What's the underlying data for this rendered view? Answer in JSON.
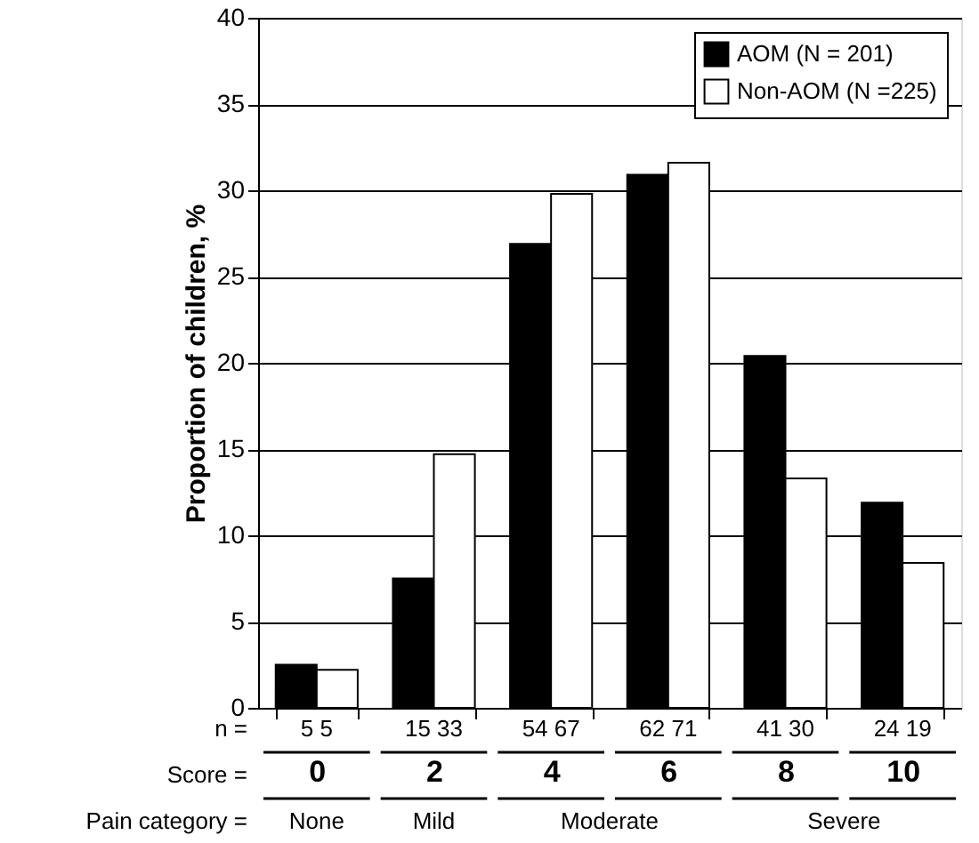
{
  "chart_data": {
    "type": "bar",
    "ylabel": "Proportion of children, %",
    "categories": [
      "0",
      "2",
      "4",
      "6",
      "8",
      "10"
    ],
    "series": [
      {
        "name": "AOM (N = 201)",
        "color": "#000000",
        "values": [
          2.5,
          7.5,
          26.9,
          30.9,
          20.4,
          11.9
        ]
      },
      {
        "name": "Non-AOM (N =225)",
        "color": "#ffffff",
        "values": [
          2.2,
          14.7,
          29.8,
          31.6,
          13.3,
          8.4
        ]
      }
    ],
    "ylim": [
      0,
      40
    ],
    "yticks": [
      0,
      5,
      10,
      15,
      20,
      25,
      30,
      35,
      40
    ],
    "grid": "y",
    "legend": "top right",
    "annotations": [
      "n =",
      "Score =",
      "Pain category =",
      "None",
      "Mild",
      "Moderate",
      "Severe",
      "5   5",
      "15 33",
      "54 67",
      "62 71",
      "41 30",
      "24 19"
    ]
  }
}
